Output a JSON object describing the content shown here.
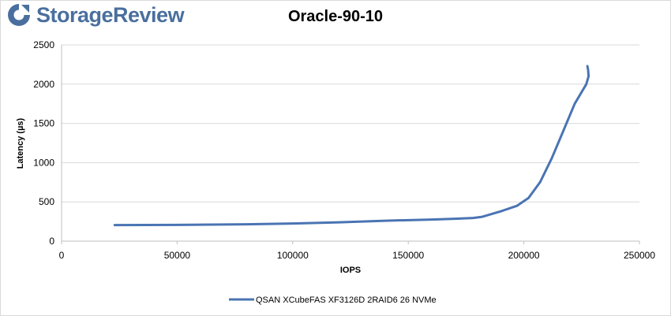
{
  "brand": {
    "name": "StorageReview",
    "icon": "storagereview-logo-icon",
    "color": "#4a6f9e"
  },
  "chart_data": {
    "type": "line",
    "title": "Oracle-90-10",
    "xlabel": "IOPS",
    "ylabel": "Latency (µs)",
    "xlim": [
      0,
      250000
    ],
    "ylim": [
      0,
      2500
    ],
    "xticks": [
      "0",
      "50000",
      "100000",
      "150000",
      "200000",
      "250000"
    ],
    "yticks": [
      "0",
      "500",
      "1000",
      "1500",
      "2000",
      "2500"
    ],
    "grid": true,
    "legend_position": "bottom",
    "series": [
      {
        "name": "QSAN XCubeFAS XF3126D 2RAID6 26 NVMe",
        "color": "#4a74b3",
        "x": [
          23000,
          50000,
          80000,
          100000,
          120000,
          140000,
          160000,
          170000,
          178000,
          182000,
          190000,
          197000,
          202000,
          207000,
          212000,
          217000,
          222000,
          227000,
          228000,
          227800,
          227500
        ],
        "y": [
          205,
          207,
          215,
          225,
          240,
          260,
          275,
          285,
          295,
          310,
          380,
          450,
          550,
          750,
          1050,
          1400,
          1750,
          2000,
          2100,
          2180,
          2230
        ]
      }
    ]
  }
}
